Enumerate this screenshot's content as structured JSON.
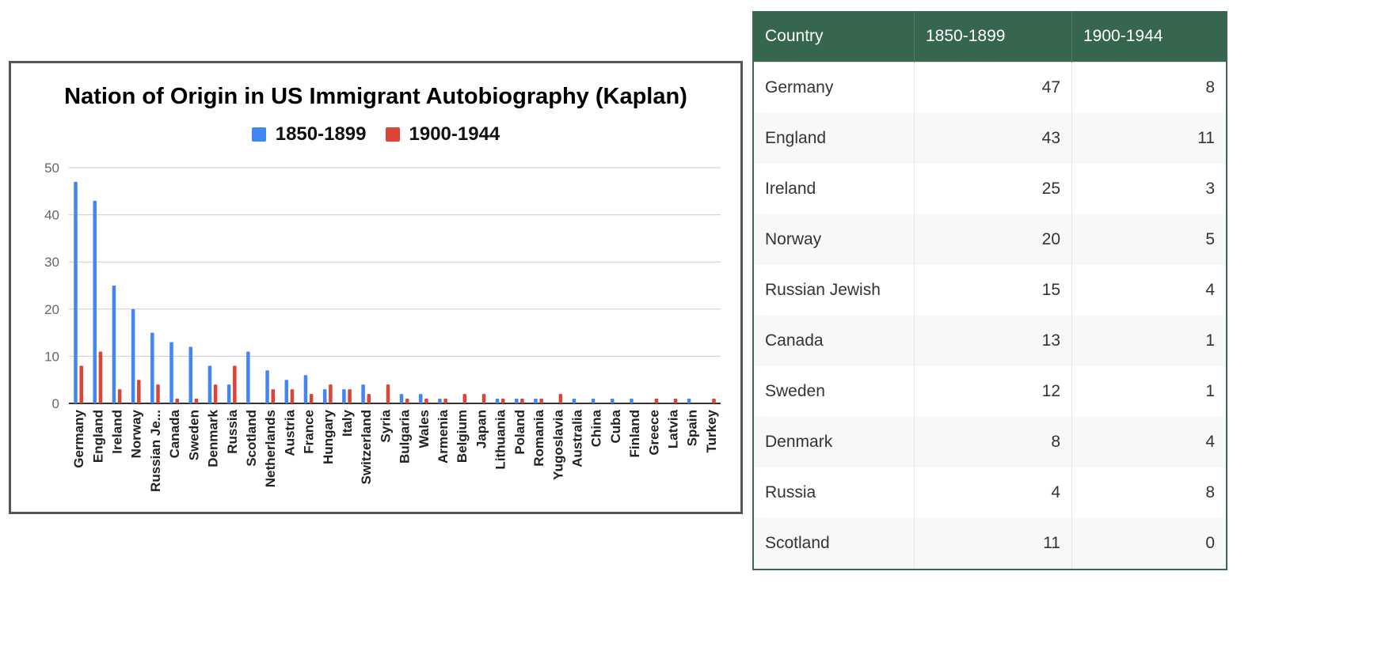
{
  "chart_data": {
    "type": "bar",
    "title": "Nation of Origin in US Immigrant Autobiography (Kaplan)",
    "xlabel": "",
    "ylabel": "",
    "ylim": [
      0,
      50
    ],
    "yticks": [
      "0",
      "10",
      "20",
      "30",
      "40",
      "50"
    ],
    "grid": true,
    "legend_position": "top",
    "categories": [
      "Germany",
      "England",
      "Ireland",
      "Norway",
      "Russian Je...",
      "Canada",
      "Sweden",
      "Denmark",
      "Russia",
      "Scotland",
      "Netherlands",
      "Austria",
      "France",
      "Hungary",
      "Italy",
      "Switzerland",
      "Syria",
      "Bulgaria",
      "Wales",
      "Armenia",
      "Belgium",
      "Japan",
      "Lithuania",
      "Poland",
      "Romania",
      "Yugoslavia",
      "Australia",
      "China",
      "Cuba",
      "Finland",
      "Greece",
      "Latvia",
      "Spain",
      "Turkey"
    ],
    "series": [
      {
        "name": "1850-1899",
        "color": "#4285f4",
        "values": [
          47,
          43,
          25,
          20,
          15,
          13,
          12,
          8,
          4,
          11,
          7,
          5,
          6,
          3,
          3,
          4,
          0,
          2,
          2,
          1,
          0,
          0,
          1,
          1,
          1,
          0,
          1,
          1,
          1,
          1,
          0,
          0,
          1,
          0
        ]
      },
      {
        "name": "1900-1944",
        "color": "#db4437",
        "values": [
          8,
          11,
          3,
          5,
          4,
          1,
          1,
          4,
          8,
          0,
          3,
          3,
          2,
          4,
          3,
          2,
          4,
          1,
          1,
          1,
          2,
          2,
          1,
          1,
          1,
          2,
          0,
          0,
          0,
          0,
          1,
          1,
          0,
          1
        ]
      }
    ]
  },
  "table": {
    "headers": [
      "Country",
      "1850-1899",
      "1900-1944"
    ],
    "rows": [
      {
        "country": "Germany",
        "v1": "47",
        "v2": "8"
      },
      {
        "country": "England",
        "v1": "43",
        "v2": "11"
      },
      {
        "country": "Ireland",
        "v1": "25",
        "v2": "3"
      },
      {
        "country": "Norway",
        "v1": "20",
        "v2": "5"
      },
      {
        "country": "Russian Jewish",
        "v1": "15",
        "v2": "4"
      },
      {
        "country": "Canada",
        "v1": "13",
        "v2": "1"
      },
      {
        "country": "Sweden",
        "v1": "12",
        "v2": "1"
      },
      {
        "country": "Denmark",
        "v1": "8",
        "v2": "4"
      },
      {
        "country": "Russia",
        "v1": "4",
        "v2": "8"
      },
      {
        "country": "Scotland",
        "v1": "11",
        "v2": "0"
      }
    ]
  }
}
